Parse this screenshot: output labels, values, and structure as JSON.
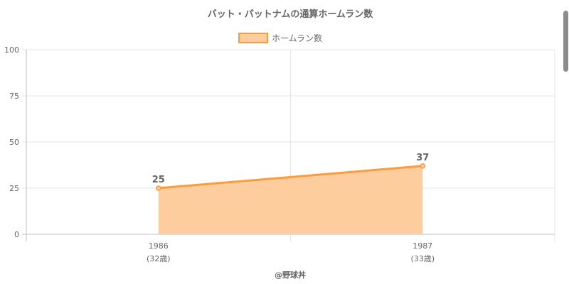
{
  "chart_data": {
    "type": "area",
    "title": "バット・パットナムの通算ホームラン数",
    "legend": {
      "label": "ホームラン数",
      "position": "top"
    },
    "categories": [
      "1986",
      "1987"
    ],
    "sublabels": [
      "(32歳)",
      "(33歳)"
    ],
    "series": [
      {
        "name": "ホームラン数",
        "values": [
          25,
          37
        ],
        "line_color": "#fb9b3f",
        "fill_color": "#fdcd9d"
      }
    ],
    "data_labels": [
      "25",
      "37"
    ],
    "ylim": [
      0,
      100
    ],
    "yticks": [
      0,
      25,
      50,
      75,
      100
    ],
    "grid": true,
    "credit": "@野球丼"
  },
  "colors": {
    "text": "#666666",
    "grid": "#e5e5e5",
    "axis": "#bdbdbd"
  }
}
